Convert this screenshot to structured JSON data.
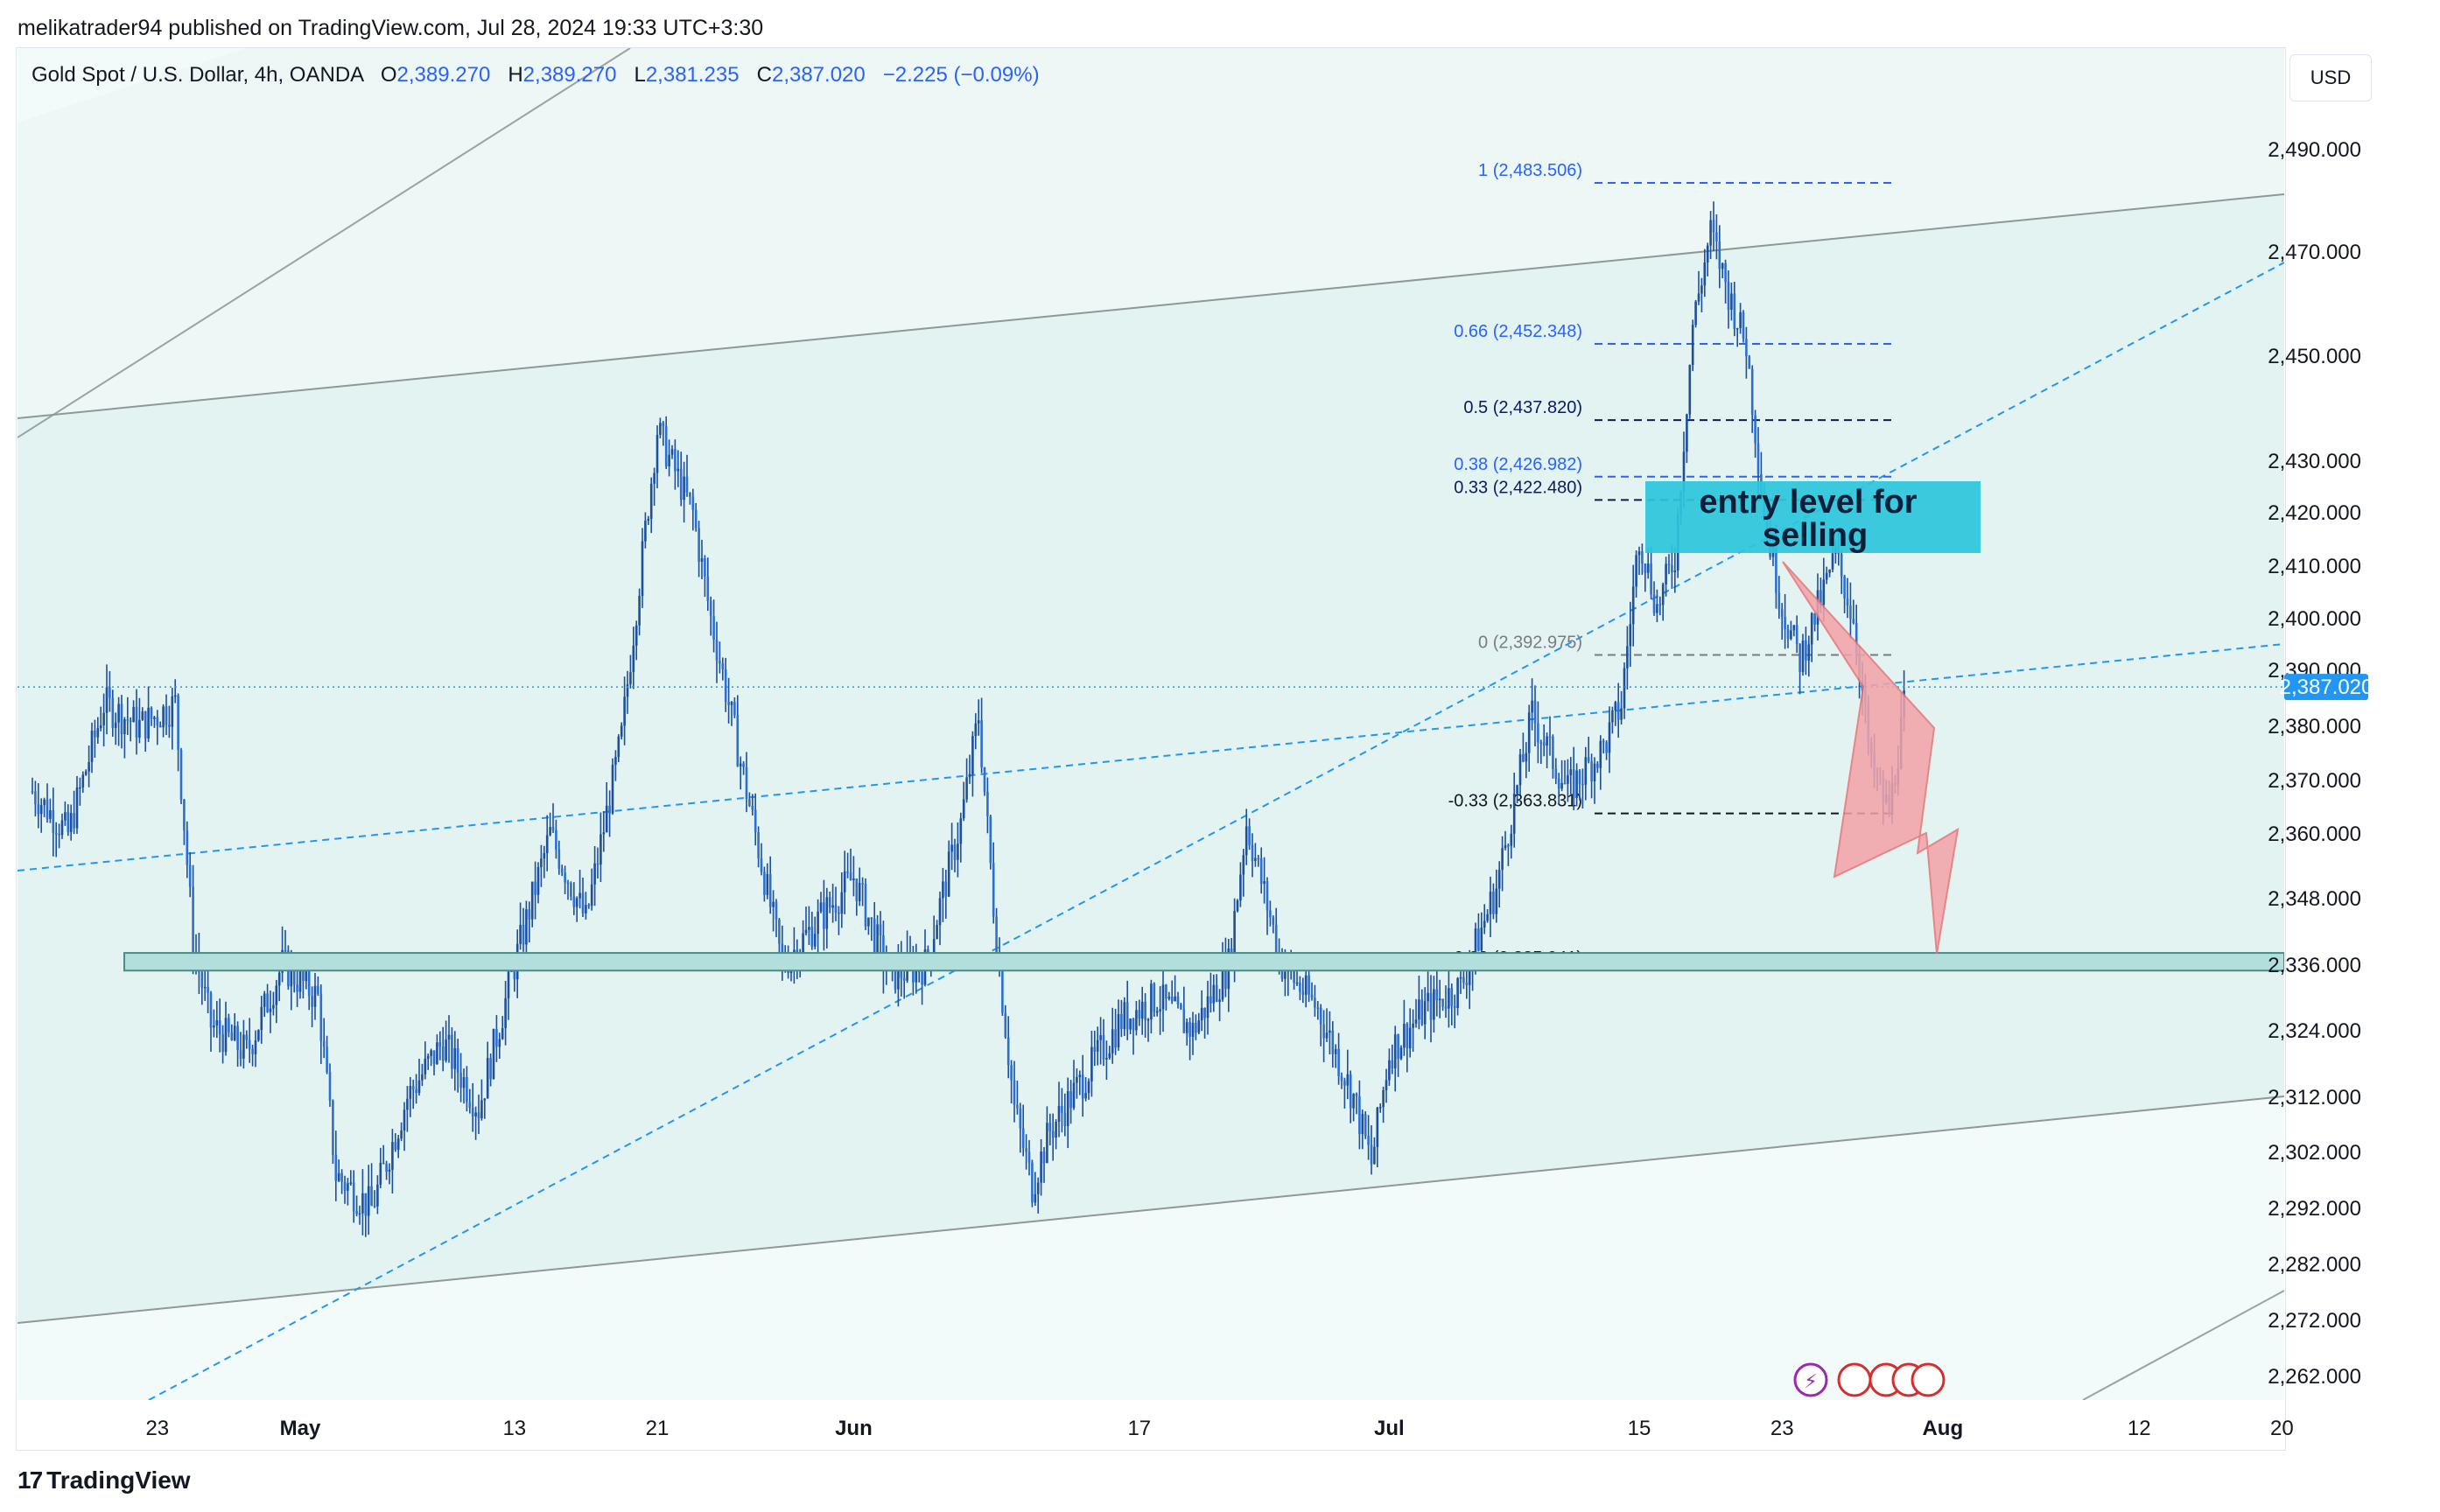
{
  "publisher_line": "melikatrader94 published on TradingView.com, Jul 28, 2024 19:33 UTC+3:30",
  "legend": {
    "symbol": "Gold Spot / U.S. Dollar, 4h, OANDA",
    "o_label": "O",
    "o_value": "2,389.270",
    "h_label": "H",
    "h_value": "2,389.270",
    "l_label": "L",
    "l_value": "2,381.235",
    "c_label": "C",
    "c_value": "2,387.020",
    "change": "−2.225 (−0.09%)"
  },
  "currency": "USD",
  "brand": "TradingView",
  "current_price_label": "2,387.020",
  "entry_box": {
    "line1": "entry level for",
    "line2": "selling"
  },
  "colors": {
    "candle": "#1c4f9c",
    "channel_fill": "#e3f3f1",
    "dashed_trend": "#2196f3",
    "zone": "#b2dfdb",
    "entry_box": "#2cc5dc",
    "arrow": "#f3a3a8",
    "price_tag": "#2196f3"
  },
  "chart_data": {
    "type": "candlestick",
    "title": "Gold Spot / U.S. Dollar, 4h, OANDA",
    "ylim": [
      2256,
      2500
    ],
    "y_ticks": [
      "2,490.000",
      "2,470.000",
      "2,450.000",
      "2,430.000",
      "2,420.000",
      "2,410.000",
      "2,400.000",
      "2,390.000",
      "2,380.000",
      "2,370.000",
      "2,360.000",
      "2,348.000",
      "2,336.000",
      "2,324.000",
      "2,312.000",
      "2,302.000",
      "2,292.000",
      "2,282.000",
      "2,272.000",
      "2,262.000"
    ],
    "y_tick_values": [
      2490,
      2470,
      2450,
      2430,
      2420,
      2410,
      2400,
      2390,
      2380,
      2370,
      2360,
      2348,
      2336,
      2324,
      2312,
      2302,
      2292,
      2282,
      2272,
      2262
    ],
    "x_ticks": [
      "23",
      "May",
      "13",
      "21",
      "Jun",
      "17",
      "Jul",
      "15",
      "23",
      "Aug",
      "12",
      "20"
    ],
    "x_tick_days": [
      -8,
      0,
      12,
      20,
      31,
      47,
      61,
      75,
      83,
      92,
      103,
      111
    ],
    "day_axis_start": "May 1, 2024",
    "close_path": [
      [
        -15,
        2368
      ],
      [
        -13,
        2360
      ],
      [
        -11,
        2384
      ],
      [
        -9,
        2380
      ],
      [
        -7,
        2384
      ],
      [
        -6,
        2340
      ],
      [
        -5,
        2325
      ],
      [
        -3,
        2320
      ],
      [
        -1,
        2336
      ],
      [
        1,
        2330
      ],
      [
        2,
        2298
      ],
      [
        4,
        2292
      ],
      [
        6,
        2312
      ],
      [
        8,
        2322
      ],
      [
        10,
        2310
      ],
      [
        12,
        2336
      ],
      [
        14,
        2360
      ],
      [
        16,
        2344
      ],
      [
        18,
        2378
      ],
      [
        20,
        2436
      ],
      [
        22,
        2420
      ],
      [
        23,
        2400
      ],
      [
        25,
        2368
      ],
      [
        27,
        2336
      ],
      [
        29,
        2344
      ],
      [
        31,
        2352
      ],
      [
        33,
        2334
      ],
      [
        35,
        2336
      ],
      [
        37,
        2362
      ],
      [
        38,
        2382
      ],
      [
        39,
        2340
      ],
      [
        40,
        2310
      ],
      [
        41,
        2296
      ],
      [
        42,
        2306
      ],
      [
        44,
        2316
      ],
      [
        46,
        2326
      ],
      [
        48,
        2330
      ],
      [
        50,
        2324
      ],
      [
        52,
        2336
      ],
      [
        53,
        2362
      ],
      [
        55,
        2336
      ],
      [
        57,
        2328
      ],
      [
        59,
        2312
      ],
      [
        60,
        2300
      ],
      [
        61,
        2320
      ],
      [
        63,
        2328
      ],
      [
        65,
        2332
      ],
      [
        67,
        2350
      ],
      [
        69,
        2382
      ],
      [
        71,
        2368
      ],
      [
        73,
        2376
      ],
      [
        74,
        2384
      ],
      [
        75,
        2416
      ],
      [
        76,
        2402
      ],
      [
        77,
        2412
      ],
      [
        78,
        2456
      ],
      [
        79,
        2474
      ],
      [
        80,
        2462
      ],
      [
        81,
        2452
      ],
      [
        82,
        2420
      ],
      [
        83,
        2402
      ],
      [
        84,
        2392
      ],
      [
        85,
        2402
      ],
      [
        86,
        2412
      ],
      [
        87,
        2400
      ],
      [
        88,
        2372
      ],
      [
        89,
        2364
      ],
      [
        90,
        2387
      ]
    ],
    "fibonacci_levels": [
      {
        "ratio": "1",
        "value": 2483.506
      },
      {
        "ratio": "0.66",
        "value": 2452.348
      },
      {
        "ratio": "0.5",
        "value": 2437.82
      },
      {
        "ratio": "0.38",
        "value": 2426.982
      },
      {
        "ratio": "0.33",
        "value": 2422.48
      },
      {
        "ratio": "0",
        "value": 2392.975
      },
      {
        "ratio": "-0.33",
        "value": 2363.831
      },
      {
        "ratio": "-0.66",
        "value": 2335.041
      }
    ],
    "support_zone": [
      2335.0,
      2338.2
    ],
    "current_price": 2387.02
  }
}
